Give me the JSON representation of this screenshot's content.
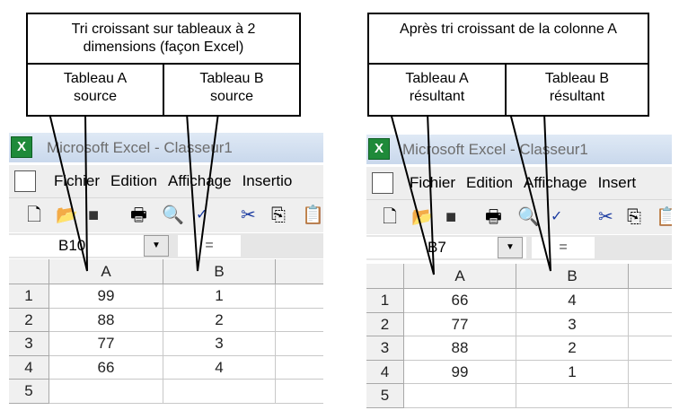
{
  "left": {
    "callout_title": "Tri croissant sur tableaux à 2 dimensions (façon Excel)",
    "callout_a": "Tableau A source",
    "callout_b": "Tableau B source",
    "window_title": "Microsoft Excel - Classeur1",
    "menu": [
      "Fichier",
      "Edition",
      "Affichage",
      "Insertio"
    ],
    "name_box": "B10",
    "formula_eq": "=",
    "columns": [
      "A",
      "B"
    ],
    "rows": [
      {
        "n": "1",
        "a": "99",
        "b": "1"
      },
      {
        "n": "2",
        "a": "88",
        "b": "2"
      },
      {
        "n": "3",
        "a": "77",
        "b": "3"
      },
      {
        "n": "4",
        "a": "66",
        "b": "4"
      },
      {
        "n": "5",
        "a": "",
        "b": ""
      }
    ]
  },
  "right": {
    "callout_title": "Après tri croissant de la colonne A",
    "callout_a": "Tableau A résultant",
    "callout_b": "Tableau B résultant",
    "window_title": "Microsoft Excel - Classeur1",
    "menu": [
      "Fichier",
      "Edition",
      "Affichage",
      "Insert"
    ],
    "name_box": "B7",
    "formula_eq": "=",
    "columns": [
      "A",
      "B"
    ],
    "rows": [
      {
        "n": "1",
        "a": "66",
        "b": "4"
      },
      {
        "n": "2",
        "a": "77",
        "b": "3"
      },
      {
        "n": "3",
        "a": "88",
        "b": "2"
      },
      {
        "n": "4",
        "a": "99",
        "b": "1"
      },
      {
        "n": "5",
        "a": "",
        "b": ""
      }
    ]
  },
  "toolbar_icons": [
    "new-icon",
    "open-icon",
    "save-icon",
    "print-icon",
    "print-preview-icon",
    "spellcheck-icon",
    "cut-icon",
    "copy-icon",
    "paste-icon"
  ]
}
